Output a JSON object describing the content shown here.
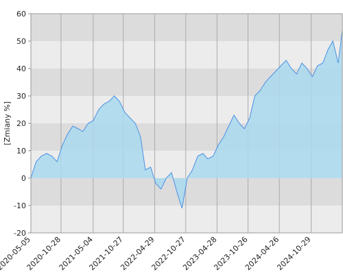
{
  "chart_data": {
    "type": "area",
    "y_label": "[Zmiany %]",
    "x": [
      "2020-05-05",
      "2020-06-05",
      "2020-07-05",
      "2020-08-05",
      "2020-09-05",
      "2020-10-05",
      "2020-11-05",
      "2020-12-05",
      "2021-01-05",
      "2021-02-05",
      "2021-03-05",
      "2021-04-05",
      "2021-05-05",
      "2021-06-05",
      "2021-07-05",
      "2021-08-05",
      "2021-09-05",
      "2021-10-05",
      "2021-11-05",
      "2021-12-05",
      "2022-01-05",
      "2022-02-05",
      "2022-03-05",
      "2022-04-05",
      "2022-05-05",
      "2022-06-05",
      "2022-07-05",
      "2022-08-05",
      "2022-09-05",
      "2022-10-05",
      "2022-11-05",
      "2022-12-05",
      "2023-01-05",
      "2023-02-05",
      "2023-03-05",
      "2023-04-05",
      "2023-05-05",
      "2023-06-05",
      "2023-07-05",
      "2023-08-05",
      "2023-09-05",
      "2023-10-05",
      "2023-11-05",
      "2023-12-05",
      "2024-01-05",
      "2024-02-05",
      "2024-03-05",
      "2024-04-05",
      "2024-05-05",
      "2024-06-05",
      "2024-07-05",
      "2024-08-05",
      "2024-09-05",
      "2024-10-05",
      "2024-11-05",
      "2024-12-05",
      "2025-01-05",
      "2025-02-05",
      "2025-03-05",
      "2025-04-05",
      "2025-04-29"
    ],
    "values": [
      0,
      6,
      8,
      9,
      8,
      6,
      12,
      16,
      19,
      18,
      17,
      20,
      21,
      25,
      27,
      28,
      30,
      28,
      24,
      22,
      20,
      15,
      3,
      4,
      -2,
      -4,
      0,
      2,
      -5,
      -11,
      0,
      3,
      8,
      9,
      7,
      8,
      12,
      15,
      19,
      23,
      20,
      18,
      22,
      30,
      32,
      35,
      37,
      39,
      41,
      43,
      40,
      38,
      42,
      40,
      37,
      41,
      42,
      47,
      50,
      42,
      54
    ],
    "color": "#4a90e2",
    "fill": "#a9d9ee",
    "xlim": [
      "2020-05-05",
      "2025-04-29"
    ],
    "xticks": [
      "2020-05-05",
      "2020-10-28",
      "2021-05-04",
      "2021-10-27",
      "2022-04-29",
      "2022-10-27",
      "2023-04-28",
      "2023-10-26",
      "2024-04-26",
      "2024-10-29"
    ],
    "ylim": [
      -20,
      60
    ],
    "yticks": [
      -20,
      -10,
      0,
      10,
      20,
      30,
      40,
      50,
      60
    ],
    "grid": true
  }
}
